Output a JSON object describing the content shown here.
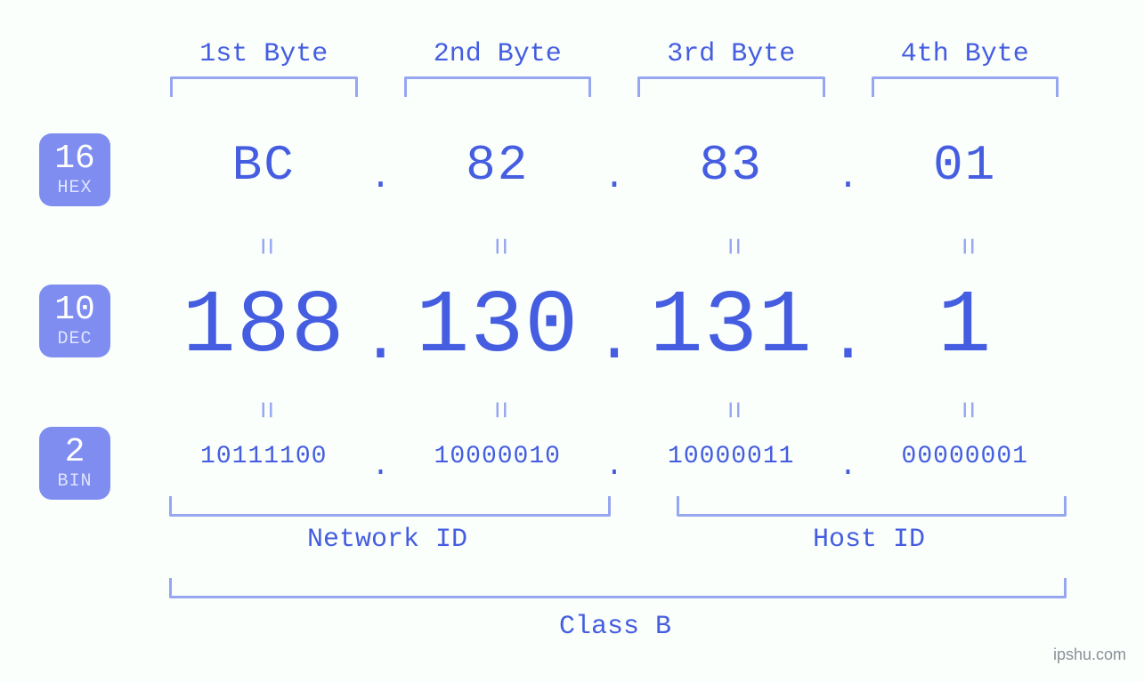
{
  "type": "infographic",
  "subject": "IPv4 address byte breakdown",
  "colors": {
    "background": "#fafffc",
    "text_primary": "#455de0",
    "text_light": "#97a6f0",
    "badge_fill": "#7f8df0",
    "badge_text": "#ffffff",
    "bracket": "#97a6f0",
    "equals": "#99a8f0",
    "watermark": "#8b8f97"
  },
  "typography": {
    "family": "monospace",
    "byte_label_pt": 30,
    "hex_pt": 56,
    "dec_pt": 100,
    "bin_pt": 28,
    "bottom_label_pt": 30,
    "badge_num_pt": 38,
    "badge_lbl_pt": 20,
    "watermark_pt": 18
  },
  "badges": {
    "hex": {
      "num": "16",
      "lbl": "HEX"
    },
    "dec": {
      "num": "10",
      "lbl": "DEC"
    },
    "bin": {
      "num": "2",
      "lbl": "BIN"
    }
  },
  "byte_labels": [
    "1st Byte",
    "2nd Byte",
    "3rd Byte",
    "4th Byte"
  ],
  "hex_values": [
    "BC",
    "82",
    "83",
    "01"
  ],
  "dec_values": [
    "188",
    "130",
    "131",
    "1"
  ],
  "bin_values": [
    "10111100",
    "10000010",
    "10000011",
    "00000001"
  ],
  "separators": {
    "dot": "."
  },
  "equals_glyph": "=",
  "bottom": {
    "network_id": "Network ID",
    "host_id": "Host ID",
    "class": "Class B",
    "network_span_bytes": [
      0,
      1
    ],
    "host_span_bytes": [
      2,
      3
    ]
  },
  "watermark": "ipshu.com"
}
